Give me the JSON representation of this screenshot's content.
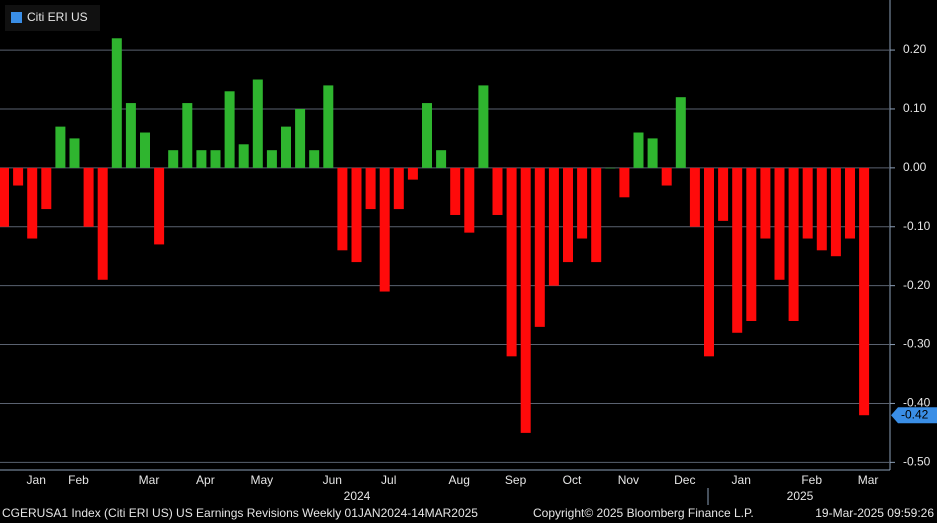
{
  "chart_data": {
    "type": "bar",
    "legend": "Citi ERI US",
    "legend_color": "#3a8ee6",
    "categories": [
      null,
      null,
      "Jan",
      null,
      null,
      "Feb",
      null,
      null,
      null,
      null,
      "Mar",
      null,
      null,
      null,
      "Apr",
      null,
      null,
      null,
      "May",
      null,
      null,
      null,
      null,
      "Jun",
      null,
      null,
      null,
      "Jul",
      null,
      null,
      null,
      null,
      "Aug",
      null,
      null,
      null,
      "Sep",
      null,
      null,
      null,
      "Oct",
      null,
      null,
      null,
      "Nov",
      null,
      null,
      null,
      "Dec",
      null,
      null,
      null,
      "Jan",
      null,
      null,
      null,
      null,
      "Feb",
      null,
      null,
      null,
      "Mar"
    ],
    "values": [
      -0.1,
      -0.03,
      -0.12,
      -0.07,
      0.07,
      0.05,
      -0.1,
      -0.19,
      0.22,
      0.11,
      0.06,
      -0.13,
      0.03,
      0.11,
      0.03,
      0.03,
      0.13,
      0.04,
      0.15,
      0.03,
      0.07,
      0.1,
      0.03,
      0.14,
      -0.14,
      -0.16,
      -0.07,
      -0.21,
      -0.07,
      -0.02,
      0.11,
      0.03,
      -0.08,
      -0.11,
      0.14,
      -0.08,
      -0.32,
      -0.45,
      -0.27,
      -0.2,
      -0.16,
      -0.12,
      -0.16,
      0.0,
      -0.05,
      0.06,
      0.05,
      -0.03,
      0.12,
      -0.1,
      -0.32,
      -0.09,
      -0.28,
      -0.26,
      -0.12,
      -0.19,
      -0.26,
      -0.12,
      -0.14,
      -0.15,
      -0.12,
      -0.42
    ],
    "colors": {
      "positive": "#2fb52f",
      "negative": "#ff0a0a"
    },
    "last_value_label": "-0.42",
    "years": [
      "2024",
      "2025"
    ],
    "ylim": [
      -0.513,
      0.285
    ],
    "yticks": [
      {
        "value": 0.2,
        "label": "0.20"
      },
      {
        "value": 0.1,
        "label": "0.10"
      },
      {
        "value": 0,
        "label": "0.00"
      },
      {
        "value": -0.1,
        "label": "-0.10"
      },
      {
        "value": -0.2,
        "label": "-0.20"
      },
      {
        "value": -0.3,
        "label": "-0.30"
      },
      {
        "value": -0.4,
        "label": "-0.40"
      },
      {
        "value": -0.5,
        "label": "-0.50"
      }
    ],
    "grid": true
  },
  "footer": {
    "description": "CGERUSA1 Index (Citi ERI US) US Earnings Revisions  Weekly 01JAN2024-14MAR2025",
    "copyright": "Copyright© 2025 Bloomberg Finance L.P.",
    "timestamp": "19-Mar-2025 09:59:26"
  }
}
